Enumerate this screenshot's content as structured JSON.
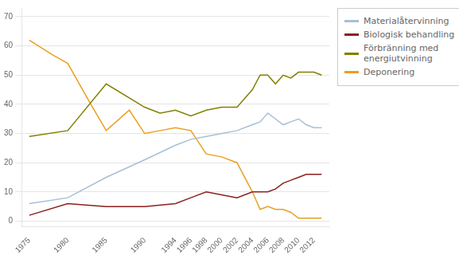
{
  "chart_data": {
    "type": "line",
    "series": [
      {
        "name": "Materialåtervinning",
        "color": "#a8bfd4",
        "x": [
          1975,
          1980,
          1985,
          1990,
          1994,
          1996,
          1998,
          2000,
          2002,
          2004,
          2005,
          2006,
          2007,
          2008,
          2009,
          2010,
          2011,
          2012,
          2013
        ],
        "values": [
          6,
          8,
          15,
          21,
          26,
          28,
          29,
          30,
          31,
          33,
          34,
          37,
          35,
          33,
          34,
          35,
          33,
          32,
          32
        ]
      },
      {
        "name": "Biologisk behandling",
        "color": "#8b2020",
        "x": [
          1975,
          1980,
          1985,
          1990,
          1994,
          1996,
          1998,
          2000,
          2002,
          2004,
          2005,
          2006,
          2007,
          2008,
          2009,
          2010,
          2011,
          2012,
          2013
        ],
        "values": [
          2,
          6,
          5,
          5,
          6,
          8,
          10,
          9,
          8,
          10,
          10,
          10,
          11,
          13,
          14,
          15,
          16,
          16,
          16
        ]
      },
      {
        "name": "Förbränning med\nenergiutvinning",
        "color": "#808000",
        "x": [
          1975,
          1980,
          1985,
          1990,
          1992,
          1994,
          1996,
          1998,
          2000,
          2002,
          2003,
          2004,
          2005,
          2006,
          2007,
          2008,
          2009,
          2010,
          2011,
          2012,
          2013
        ],
        "values": [
          29,
          31,
          47,
          39,
          37,
          38,
          36,
          38,
          39,
          39,
          42,
          45,
          50,
          50,
          47,
          50,
          49,
          51,
          51,
          51,
          50
        ]
      },
      {
        "name": "Deponering",
        "color": "#e8a020",
        "x": [
          1975,
          1978,
          1980,
          1983,
          1985,
          1988,
          1990,
          1992,
          1994,
          1996,
          1998,
          2000,
          2002,
          2004,
          2005,
          2006,
          2007,
          2008,
          2009,
          2010,
          2011,
          2012,
          2013
        ],
        "values": [
          62,
          57,
          54,
          40,
          31,
          38,
          30,
          31,
          32,
          31,
          23,
          22,
          20,
          10,
          4,
          5,
          4,
          4,
          3,
          1,
          1,
          1,
          1
        ]
      }
    ],
    "xlim": [
      1974,
      2014
    ],
    "xticks": [
      1975,
      1980,
      1985,
      1990,
      1994,
      1996,
      1998,
      2000,
      2002,
      2004,
      2006,
      2008,
      2010,
      2012
    ],
    "ylim": [
      -2,
      73
    ],
    "yticks": [
      0,
      10,
      20,
      30,
      40,
      50,
      60,
      70
    ],
    "grid": "y",
    "legend": "right"
  }
}
